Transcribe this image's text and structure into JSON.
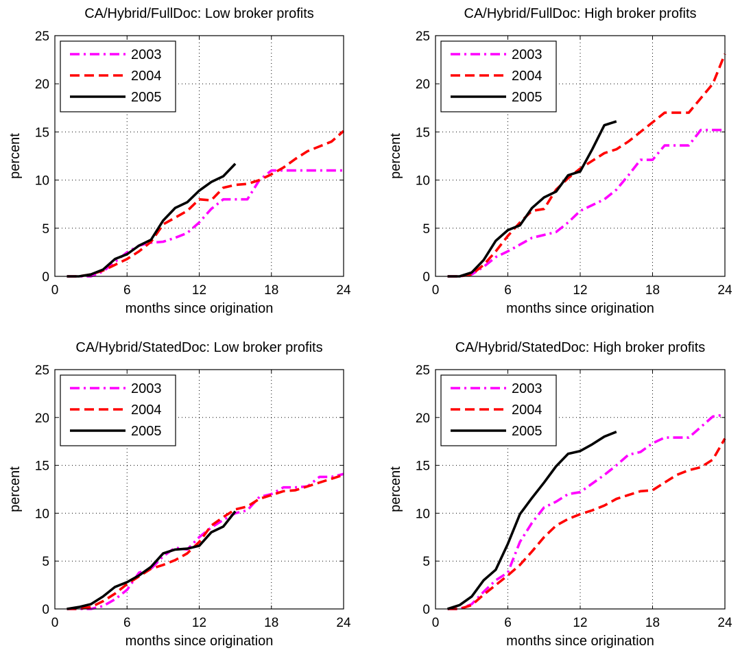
{
  "chart_data": [
    {
      "type": "line",
      "title": "CA/Hybrid/FullDoc: Low broker profits",
      "xlabel": "months since origination",
      "ylabel": "percent",
      "xlim": [
        0,
        24
      ],
      "ylim": [
        0,
        25
      ],
      "xticks": [
        0,
        6,
        12,
        18,
        24
      ],
      "yticks": [
        0,
        5,
        10,
        15,
        20,
        25
      ],
      "grid": true,
      "legend_position": "top-left",
      "series": [
        {
          "name": "2003",
          "color": "#ff00ff",
          "dash": "dash-dot",
          "x": [
            1,
            2,
            3,
            4,
            5,
            6,
            7,
            8,
            9,
            10,
            11,
            12,
            13,
            14,
            15,
            16,
            17,
            18,
            19,
            20,
            21,
            22,
            23,
            24
          ],
          "y": [
            0,
            0,
            0,
            0.5,
            1.5,
            2.5,
            3.2,
            3.5,
            3.6,
            4.0,
            4.5,
            5.6,
            7.0,
            8.0,
            8.0,
            8.0,
            10.0,
            11.0,
            11.0,
            11.0,
            11.0,
            11.0,
            11.0,
            11.0
          ]
        },
        {
          "name": "2004",
          "color": "#ff0000",
          "dash": "dashed",
          "x": [
            1,
            2,
            3,
            4,
            5,
            6,
            7,
            8,
            9,
            10,
            11,
            12,
            13,
            14,
            15,
            16,
            17,
            18,
            19,
            20,
            21,
            22,
            23,
            24
          ],
          "y": [
            0,
            0,
            0.2,
            0.6,
            1.2,
            1.8,
            2.6,
            3.6,
            5.4,
            6.1,
            6.8,
            8.0,
            7.9,
            9.2,
            9.5,
            9.6,
            10.0,
            10.6,
            11.3,
            12.2,
            13.0,
            13.5,
            14.0,
            15.1
          ]
        },
        {
          "name": "2005",
          "color": "#000000",
          "dash": "solid",
          "x": [
            1,
            2,
            3,
            4,
            5,
            6,
            7,
            8,
            9,
            10,
            11,
            12,
            13,
            14,
            15
          ],
          "y": [
            0,
            0,
            0.2,
            0.7,
            1.8,
            2.3,
            3.2,
            3.8,
            5.8,
            7.1,
            7.7,
            8.9,
            9.8,
            10.4,
            11.7
          ]
        }
      ]
    },
    {
      "type": "line",
      "title": "CA/Hybrid/FullDoc: High broker profits",
      "xlabel": "months since origination",
      "ylabel": "percent",
      "xlim": [
        0,
        24
      ],
      "ylim": [
        0,
        25
      ],
      "xticks": [
        0,
        6,
        12,
        18,
        24
      ],
      "yticks": [
        0,
        5,
        10,
        15,
        20,
        25
      ],
      "grid": true,
      "legend_position": "top-left",
      "series": [
        {
          "name": "2003",
          "color": "#ff00ff",
          "dash": "dash-dot",
          "x": [
            1,
            2,
            3,
            4,
            5,
            6,
            7,
            8,
            9,
            10,
            11,
            12,
            13,
            14,
            15,
            16,
            17,
            18,
            19,
            20,
            21,
            22,
            23,
            24
          ],
          "y": [
            0,
            0,
            0.2,
            1.0,
            2.0,
            2.6,
            3.3,
            4.0,
            4.3,
            4.6,
            5.6,
            6.8,
            7.4,
            8.0,
            9.0,
            10.5,
            12.1,
            12.1,
            13.6,
            13.6,
            13.6,
            15.2,
            15.2,
            15.2
          ]
        },
        {
          "name": "2004",
          "color": "#ff0000",
          "dash": "dashed",
          "x": [
            1,
            2,
            3,
            4,
            5,
            6,
            7,
            8,
            9,
            10,
            11,
            12,
            13,
            14,
            15,
            16,
            17,
            18,
            19,
            20,
            21,
            22,
            23,
            24
          ],
          "y": [
            0,
            0,
            0.2,
            1.2,
            2.6,
            4.2,
            5.6,
            6.8,
            7.0,
            9.0,
            10.2,
            11.2,
            12.0,
            12.8,
            13.2,
            14.0,
            15.0,
            16.0,
            17.0,
            17.0,
            17.0,
            18.5,
            20.0,
            23.1
          ]
        },
        {
          "name": "2005",
          "color": "#000000",
          "dash": "solid",
          "x": [
            1,
            2,
            3,
            4,
            5,
            6,
            7,
            8,
            9,
            10,
            11,
            12,
            13,
            14,
            15
          ],
          "y": [
            0,
            0,
            0.4,
            1.7,
            3.7,
            4.8,
            5.3,
            7.1,
            8.2,
            8.8,
            10.5,
            10.9,
            13.2,
            15.7,
            16.1
          ]
        }
      ]
    },
    {
      "type": "line",
      "title": "CA/Hybrid/StatedDoc: Low broker profits",
      "xlabel": "months since origination",
      "ylabel": "percent",
      "xlim": [
        0,
        24
      ],
      "ylim": [
        0,
        25
      ],
      "xticks": [
        0,
        6,
        12,
        18,
        24
      ],
      "yticks": [
        0,
        5,
        10,
        15,
        20,
        25
      ],
      "grid": true,
      "legend_position": "top-left",
      "series": [
        {
          "name": "2003",
          "color": "#ff00ff",
          "dash": "dash-dot",
          "x": [
            1,
            2,
            3,
            4,
            5,
            6,
            7,
            8,
            9,
            10,
            11,
            12,
            13,
            14,
            15,
            16,
            17,
            18,
            19,
            20,
            21,
            22,
            23,
            24
          ],
          "y": [
            0,
            0,
            0,
            0.3,
            1.0,
            2.0,
            3.8,
            4.2,
            5.5,
            6.4,
            6.2,
            7.5,
            8.5,
            9.3,
            10.0,
            10.3,
            11.7,
            12.0,
            12.7,
            12.7,
            12.8,
            13.8,
            13.8,
            14.1
          ]
        },
        {
          "name": "2004",
          "color": "#ff0000",
          "dash": "dashed",
          "x": [
            1,
            2,
            3,
            4,
            5,
            6,
            7,
            8,
            9,
            10,
            11,
            12,
            13,
            14,
            15,
            16,
            17,
            18,
            19,
            20,
            21,
            22,
            23,
            24
          ],
          "y": [
            0,
            0,
            0.2,
            0.8,
            1.6,
            2.6,
            3.4,
            4.2,
            4.6,
            5.1,
            5.8,
            7.0,
            8.7,
            9.6,
            10.4,
            10.7,
            11.5,
            11.9,
            12.3,
            12.4,
            12.8,
            13.2,
            13.6,
            14.0
          ]
        },
        {
          "name": "2005",
          "color": "#000000",
          "dash": "solid",
          "x": [
            1,
            2,
            3,
            4,
            5,
            6,
            7,
            8,
            9,
            10,
            11,
            12,
            13,
            14,
            15
          ],
          "y": [
            0,
            0.2,
            0.5,
            1.3,
            2.3,
            2.8,
            3.5,
            4.4,
            5.8,
            6.2,
            6.3,
            6.6,
            8.0,
            8.6,
            10.2
          ]
        }
      ]
    },
    {
      "type": "line",
      "title": "CA/Hybrid/StatedDoc: High broker profits",
      "xlabel": "months since origination",
      "ylabel": "percent",
      "xlim": [
        0,
        24
      ],
      "ylim": [
        0,
        25
      ],
      "xticks": [
        0,
        6,
        12,
        18,
        24
      ],
      "yticks": [
        0,
        5,
        10,
        15,
        20,
        25
      ],
      "grid": true,
      "legend_position": "top-left",
      "series": [
        {
          "name": "2003",
          "color": "#ff00ff",
          "dash": "dash-dot",
          "x": [
            1,
            2,
            3,
            4,
            5,
            6,
            7,
            8,
            9,
            10,
            11,
            12,
            13,
            14,
            15,
            16,
            17,
            18,
            19,
            20,
            21,
            22,
            23,
            24
          ],
          "y": [
            0,
            0,
            0.5,
            1.8,
            3.0,
            3.8,
            7.0,
            9.0,
            10.6,
            11.2,
            12.0,
            12.2,
            13.1,
            14.0,
            15.0,
            16.1,
            16.4,
            17.3,
            17.9,
            17.9,
            17.9,
            19.0,
            20.1,
            20.3
          ]
        },
        {
          "name": "2004",
          "color": "#ff0000",
          "dash": "dashed",
          "x": [
            1,
            2,
            3,
            4,
            5,
            6,
            7,
            8,
            9,
            10,
            11,
            12,
            13,
            14,
            15,
            16,
            17,
            18,
            19,
            20,
            21,
            22,
            23,
            24
          ],
          "y": [
            0,
            0,
            0.4,
            1.5,
            2.5,
            3.5,
            4.6,
            6.0,
            7.5,
            8.7,
            9.4,
            9.9,
            10.3,
            10.8,
            11.5,
            11.9,
            12.3,
            12.4,
            13.2,
            14.0,
            14.5,
            14.8,
            15.6,
            17.8
          ]
        },
        {
          "name": "2005",
          "color": "#000000",
          "dash": "solid",
          "x": [
            1,
            2,
            3,
            4,
            5,
            6,
            7,
            8,
            9,
            10,
            11,
            12,
            13,
            14,
            15
          ],
          "y": [
            0,
            0.4,
            1.3,
            3.0,
            4.1,
            6.8,
            9.9,
            11.6,
            13.2,
            14.9,
            16.2,
            16.5,
            17.2,
            18.0,
            18.5
          ]
        }
      ]
    }
  ]
}
